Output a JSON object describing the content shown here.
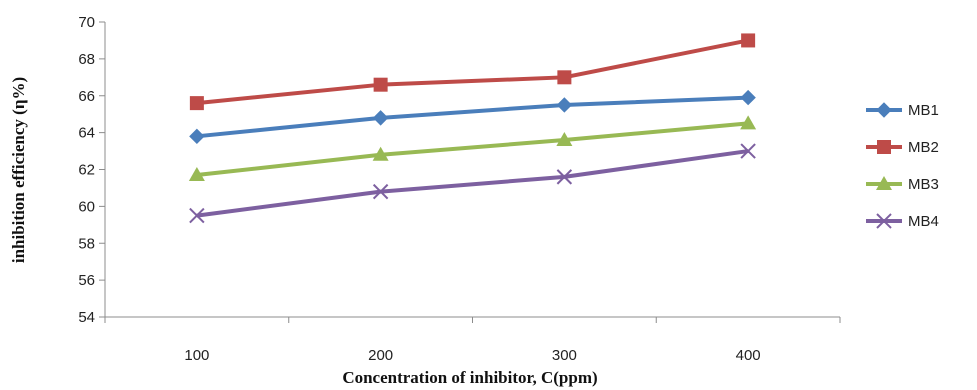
{
  "chart_data": {
    "type": "line",
    "xlabel": "Concentration of inhibitor, C(ppm)",
    "ylabel": "inhibition efficiency (η%)",
    "categories": [
      "100",
      "200",
      "300",
      "400"
    ],
    "ylim": [
      54,
      70
    ],
    "yticks": [
      54,
      56,
      58,
      60,
      62,
      64,
      66,
      68,
      70
    ],
    "grid": false,
    "legend_position": "right",
    "series": [
      {
        "name": "MB1",
        "values": [
          63.8,
          64.8,
          65.5,
          65.9
        ],
        "color": "#4a7ebb",
        "marker": "diamond"
      },
      {
        "name": "MB2",
        "values": [
          65.6,
          66.6,
          67.0,
          69.0
        ],
        "color": "#be4b48",
        "marker": "square"
      },
      {
        "name": "MB3",
        "values": [
          61.7,
          62.8,
          63.6,
          64.5
        ],
        "color": "#98b954",
        "marker": "triangle"
      },
      {
        "name": "MB4",
        "values": [
          59.5,
          60.8,
          61.6,
          63.0
        ],
        "color": "#7d60a0",
        "marker": "x"
      }
    ]
  }
}
